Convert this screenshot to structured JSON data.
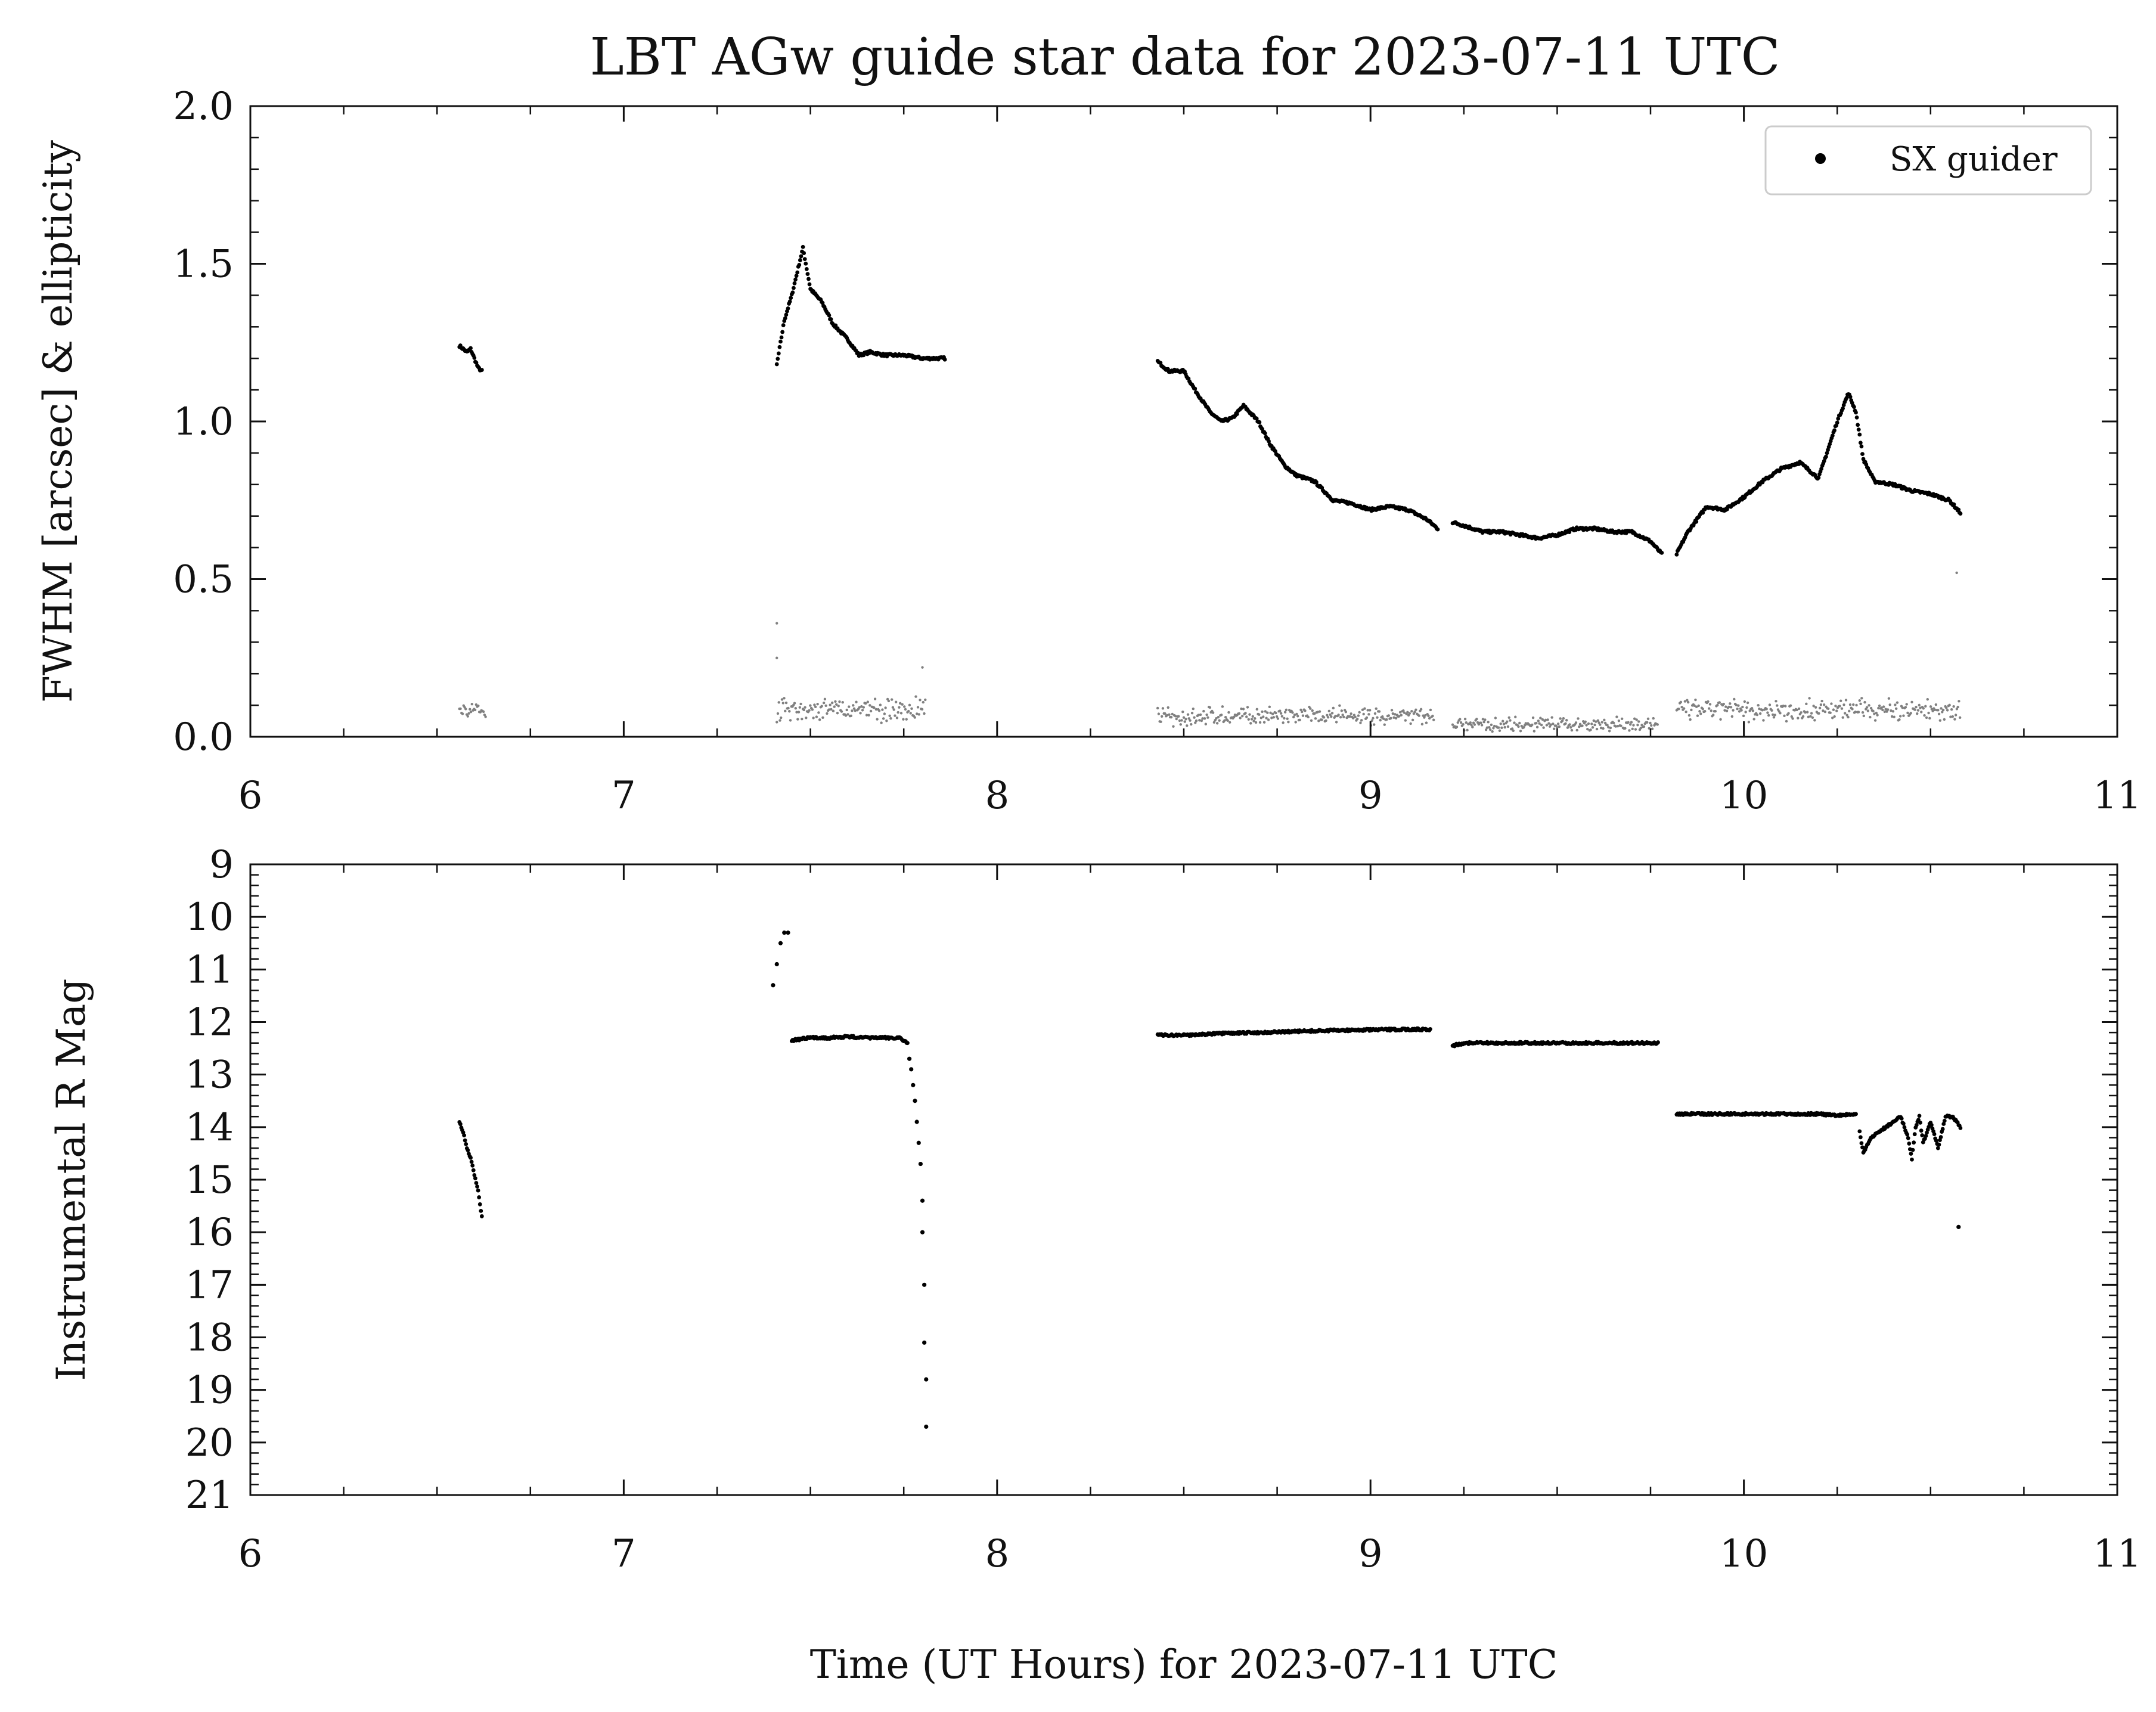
{
  "chart_data": [
    {
      "type": "scatter",
      "title": "LBT AGw guide star data for 2023-07-11 UTC",
      "xlabel": "",
      "ylabel": "FWHM [arcsec] & ellipticity",
      "xlim": [
        6,
        11
      ],
      "ylim": [
        0.0,
        2.0
      ],
      "x_ticks": [
        "6",
        "7",
        "8",
        "9",
        "10",
        "11"
      ],
      "y_ticks": [
        "0.0",
        "0.5",
        "1.0",
        "1.5",
        "2.0"
      ],
      "legend": {
        "entries": [
          "SX guider"
        ],
        "position": "top-right"
      },
      "series": [
        {
          "name": "SX guider",
          "role": "FWHM",
          "color": "#000000",
          "segments": [
            {
              "x": [
                6.56,
                6.58,
                6.59,
                6.6,
                6.61,
                6.62
              ],
              "y": [
                1.24,
                1.22,
                1.23,
                1.2,
                1.17,
                1.16
              ]
            },
            {
              "x": [
                7.41,
                7.43,
                7.45,
                7.47,
                7.48,
                7.5,
                7.53,
                7.56,
                7.6,
                7.63,
                7.66,
                7.7,
                7.75,
                7.8,
                7.86
              ],
              "y": [
                1.18,
                1.32,
                1.4,
                1.5,
                1.55,
                1.42,
                1.38,
                1.31,
                1.26,
                1.21,
                1.22,
                1.21,
                1.21,
                1.2,
                1.2
              ]
            },
            {
              "x": [
                8.43,
                8.46,
                8.5,
                8.53,
                8.57,
                8.6,
                8.63,
                8.66,
                8.7,
                8.73,
                8.77,
                8.8,
                8.85,
                8.9,
                8.95,
                9.0,
                9.05,
                9.1,
                9.15,
                9.18
              ],
              "y": [
                1.19,
                1.16,
                1.16,
                1.1,
                1.03,
                1.0,
                1.01,
                1.05,
                1.0,
                0.93,
                0.86,
                0.83,
                0.81,
                0.75,
                0.74,
                0.72,
                0.73,
                0.72,
                0.69,
                0.66
              ]
            },
            {
              "x": [
                9.22,
                9.25,
                9.3,
                9.35,
                9.4,
                9.45,
                9.5,
                9.55,
                9.6,
                9.65,
                9.7,
                9.75,
                9.78
              ],
              "y": [
                0.68,
                0.67,
                0.65,
                0.65,
                0.64,
                0.63,
                0.64,
                0.66,
                0.66,
                0.65,
                0.65,
                0.62,
                0.58
              ]
            },
            {
              "x": [
                9.82,
                9.85,
                9.9,
                9.95,
                10.0,
                10.05,
                10.1,
                10.15,
                10.2,
                10.25,
                10.28,
                10.3,
                10.32,
                10.35,
                10.4,
                10.45,
                10.5,
                10.55,
                10.58
              ],
              "y": [
                0.58,
                0.65,
                0.73,
                0.72,
                0.76,
                0.81,
                0.85,
                0.87,
                0.82,
                1.0,
                1.09,
                1.03,
                0.88,
                0.81,
                0.8,
                0.78,
                0.77,
                0.75,
                0.71
              ]
            }
          ]
        },
        {
          "name": "",
          "role": "ellipticity",
          "color": "#808080",
          "segments": [
            {
              "x0": 6.56,
              "x1": 6.63,
              "mean": 0.08,
              "spread": 0.035
            },
            {
              "x0": 7.41,
              "x1": 7.81,
              "mean": 0.085,
              "spread": 0.045
            },
            {
              "x0": 8.43,
              "x1": 9.17,
              "mean": 0.065,
              "spread": 0.035
            },
            {
              "x0": 9.22,
              "x1": 9.77,
              "mean": 0.04,
              "spread": 0.025
            },
            {
              "x0": 9.82,
              "x1": 10.58,
              "mean": 0.085,
              "spread": 0.04
            }
          ],
          "outliers": {
            "x": [
              7.41,
              7.41,
              7.8,
              10.57
            ],
            "y": [
              0.36,
              0.25,
              0.22,
              0.52
            ]
          }
        }
      ]
    },
    {
      "type": "scatter",
      "title": "",
      "xlabel": "Time (UT Hours) for 2023-07-11 UTC",
      "ylabel": "Instrumental R Mag",
      "xlim": [
        6,
        11
      ],
      "ylim": [
        21,
        9
      ],
      "y_inverted": true,
      "x_ticks": [
        "6",
        "7",
        "8",
        "9",
        "10",
        "11"
      ],
      "y_ticks": [
        "9",
        "10",
        "11",
        "12",
        "13",
        "14",
        "15",
        "16",
        "17",
        "18",
        "19",
        "20",
        "21"
      ],
      "series": [
        {
          "name": "SX guider",
          "color": "#000000",
          "segments": [
            {
              "x": [
                6.56,
                6.57,
                6.58,
                6.59,
                6.6,
                6.61,
                6.62
              ],
              "y": [
                13.9,
                14.1,
                14.4,
                14.6,
                14.9,
                15.2,
                15.7
              ]
            },
            {
              "x": [
                7.4,
                7.41,
                7.42,
                7.43,
                7.44
              ],
              "y": [
                11.3,
                10.9,
                10.5,
                10.3,
                10.3
              ]
            },
            {
              "x": [
                7.45,
                7.5,
                7.55,
                7.6,
                7.65,
                7.7,
                7.74,
                7.76
              ],
              "y": [
                12.35,
                12.3,
                12.3,
                12.28,
                12.3,
                12.3,
                12.3,
                12.4
              ]
            },
            {
              "x": [
                7.765,
                7.77,
                7.775,
                7.78,
                7.785,
                7.79,
                7.795,
                7.8,
                7.8,
                7.805,
                7.805,
                7.81,
                7.81
              ],
              "y": [
                12.7,
                12.9,
                13.2,
                13.5,
                13.9,
                14.3,
                14.7,
                15.4,
                16.0,
                17.0,
                18.1,
                18.8,
                19.7
              ]
            },
            {
              "x": [
                8.43,
                8.5,
                8.6,
                8.7,
                8.8,
                8.9,
                9.0,
                9.1,
                9.16
              ],
              "y": [
                12.25,
                12.25,
                12.22,
                12.2,
                12.18,
                12.16,
                12.15,
                12.14,
                12.14
              ]
            },
            {
              "x": [
                9.22,
                9.25,
                9.3,
                9.4,
                9.5,
                9.6,
                9.7,
                9.77
              ],
              "y": [
                12.45,
                12.4,
                12.4,
                12.4,
                12.4,
                12.4,
                12.4,
                12.4
              ]
            },
            {
              "x": [
                9.82,
                9.9,
                10.0,
                10.1,
                10.2,
                10.25,
                10.3
              ],
              "y": [
                13.75,
                13.75,
                13.75,
                13.75,
                13.75,
                13.78,
                13.75
              ]
            },
            {
              "x": [
                10.31,
                10.32,
                10.34,
                10.36,
                10.38,
                10.4,
                10.42,
                10.44,
                10.45,
                10.46,
                10.47,
                10.48,
                10.5,
                10.52,
                10.54,
                10.56,
                10.58
              ],
              "y": [
                14.1,
                14.5,
                14.2,
                14.1,
                14.0,
                13.9,
                13.8,
                14.2,
                14.6,
                14.0,
                13.8,
                14.3,
                13.9,
                14.4,
                13.8,
                13.8,
                14.0
              ]
            },
            {
              "x": [
                10.575
              ],
              "y": [
                15.9
              ]
            }
          ]
        }
      ]
    }
  ]
}
